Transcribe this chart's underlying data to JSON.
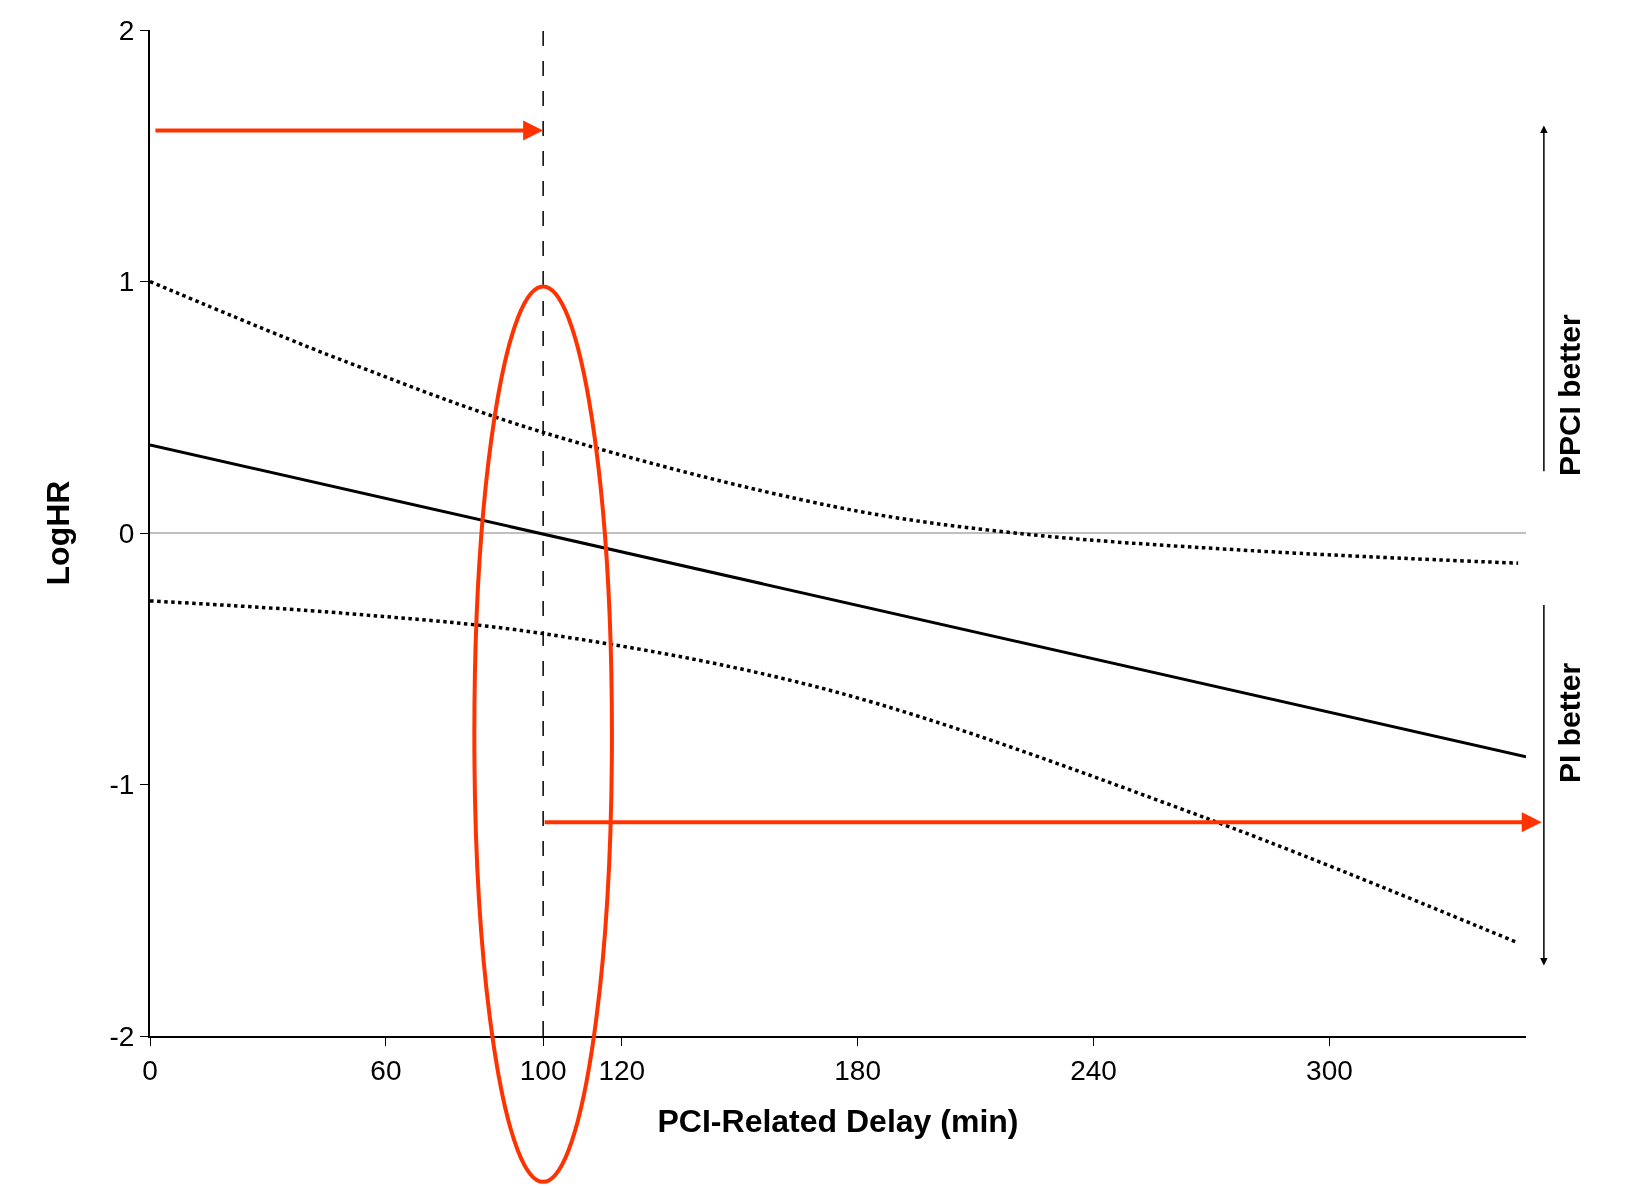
{
  "chart_data": {
    "type": "line",
    "xlabel": "PCI-Related Delay (min)",
    "ylabel": "LogHR",
    "series": [
      {
        "color": "#000000",
        "x": [
          0,
          350
        ],
        "values": [
          0.35,
          -0.89
        ],
        "line_style": "solid"
      },
      {
        "color": "#000000",
        "x": [
          0,
          50,
          100,
          174,
          220,
          280,
          348
        ],
        "values": [
          1.0,
          0.68,
          0.4,
          0.105,
          0,
          -0.07,
          -0.12
        ],
        "line_style": "dotted"
      },
      {
        "color": "#000000",
        "x": [
          0,
          50,
          100,
          174,
          268,
          348
        ],
        "values": [
          -0.27,
          -0.32,
          -0.4,
          -0.63,
          -1.13,
          -1.63
        ],
        "line_style": "dotted"
      }
    ],
    "xlim": [
      0,
      350
    ],
    "xticks": [
      0,
      60,
      100,
      120,
      180,
      240,
      300
    ],
    "ylim": [
      -2,
      2
    ],
    "yticks": [
      -2,
      -1,
      0,
      1,
      2
    ],
    "ref_lines": [
      {
        "axis": "y",
        "value": 0,
        "color": "#808080",
        "line_style": "solid"
      },
      {
        "axis": "x",
        "value": 100,
        "color": "#000000",
        "line_style": "dashed"
      }
    ],
    "annotations": [
      "PPCI better",
      "PI better"
    ],
    "grid": false,
    "marker": "none"
  }
}
